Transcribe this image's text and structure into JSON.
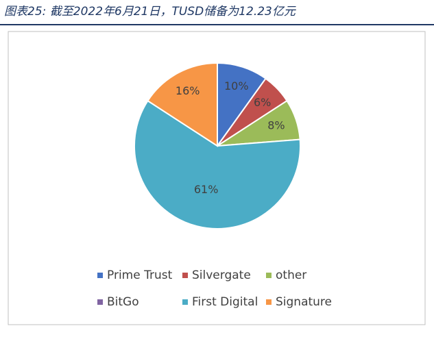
{
  "chart_data": {
    "type": "pie",
    "title": "图表25: 截至2022年6月21日，TUSD储备为12.23亿元",
    "categories": [
      "Prime Trust",
      "Silvergate",
      "other",
      "BitGo",
      "First Digital",
      "Signature"
    ],
    "values": [
      10,
      6,
      8,
      0,
      61,
      16
    ],
    "value_labels": [
      "10%",
      "6%",
      "8%",
      null,
      "61%",
      "16%"
    ],
    "colors": [
      "#4472c4",
      "#c0504d",
      "#9bbb59",
      "#8064a2",
      "#4bacc6",
      "#f79646"
    ],
    "legend": "bottom"
  }
}
